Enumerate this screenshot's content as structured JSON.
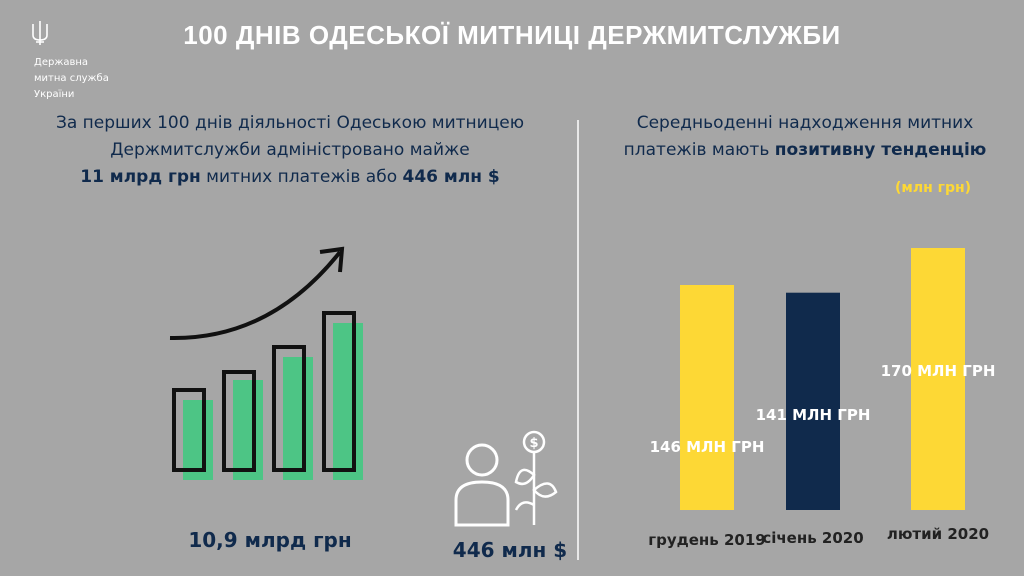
{
  "header": {
    "title": "100 ДНІВ ОДЕСЬКОЇ МИТНИЦІ ДЕРЖМИТСЛУЖБИ",
    "org_lines": [
      "Державна",
      "митна служба",
      "України"
    ],
    "logo_icon": "trident-icon"
  },
  "left": {
    "line1": "За перших 100 днів діяльності Одеською митницею",
    "line2": "Держмитслужби адміністровано майже",
    "highlight1": "11 млрд грн",
    "mid": " митних платежів або ",
    "highlight2": "446 млн $",
    "total_uah": "10,9 млрд грн",
    "total_usd": "446 млн $",
    "growth_icon": "growth-bars-icon",
    "person_icon": "person-money-plant-icon"
  },
  "right": {
    "line1": "Середньоденні надходження митних",
    "line2_prefix": "платежів мають ",
    "line2_bold": "позитивну тенденцію",
    "unit": "(млн грн)"
  },
  "colors": {
    "background": "#a6a6a6",
    "navy": "#102a4c",
    "yellow": "#fdd835",
    "green": "#4dc585"
  },
  "chart_data": {
    "type": "bar",
    "categories": [
      "грудень 2019",
      "січень 2020",
      "лютий 2020"
    ],
    "values": [
      146,
      141,
      170
    ],
    "value_labels": [
      "146 МЛН ГРН",
      "141 МЛН ГРН",
      "170 МЛН ГРН"
    ],
    "colors": [
      "#fdd835",
      "#102a4c",
      "#fdd835"
    ],
    "ylabel": "(млн грн)",
    "grid": false,
    "legend": "none"
  }
}
